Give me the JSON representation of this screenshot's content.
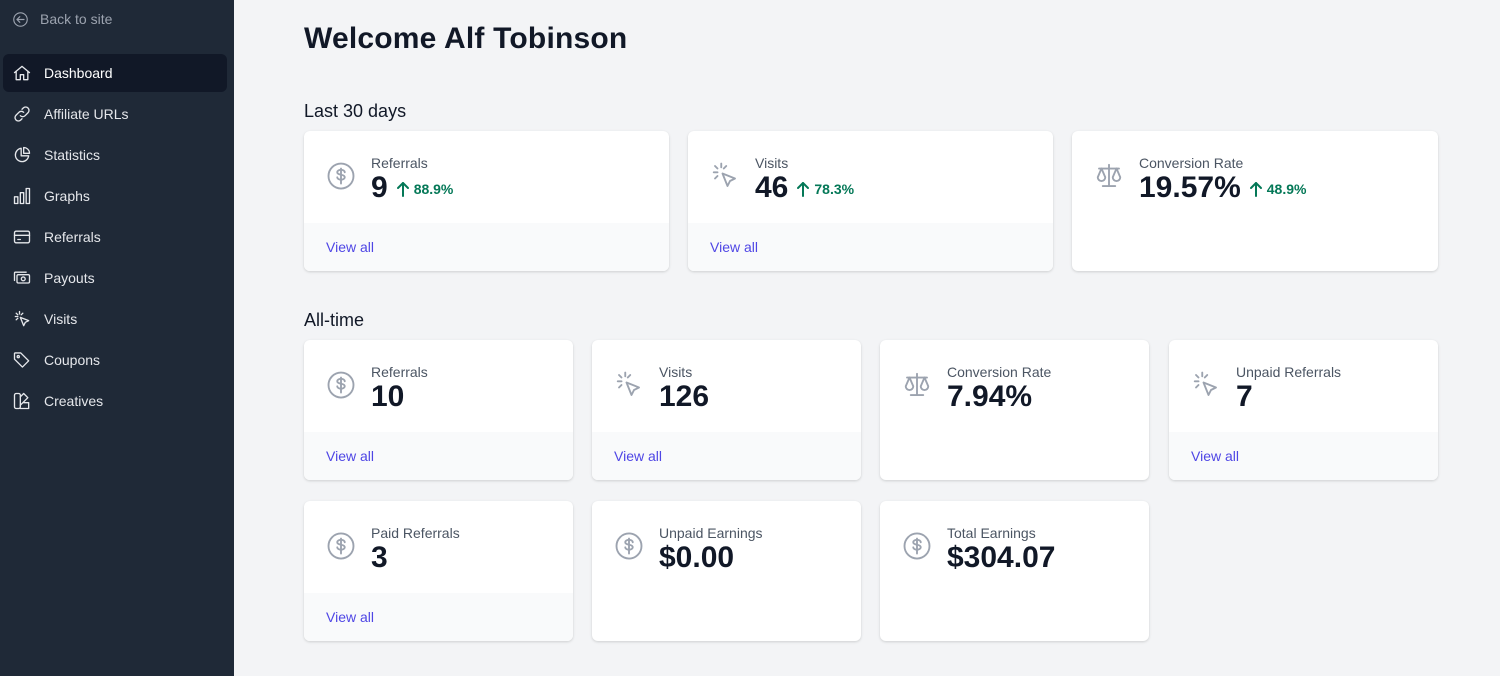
{
  "sidebar": {
    "back_label": "Back to site",
    "items": [
      {
        "label": "Dashboard",
        "icon": "home-icon"
      },
      {
        "label": "Affiliate URLs",
        "icon": "link-icon"
      },
      {
        "label": "Statistics",
        "icon": "pie-chart-icon"
      },
      {
        "label": "Graphs",
        "icon": "bar-chart-icon"
      },
      {
        "label": "Referrals",
        "icon": "card-icon"
      },
      {
        "label": "Payouts",
        "icon": "cash-icon"
      },
      {
        "label": "Visits",
        "icon": "cursor-click-icon"
      },
      {
        "label": "Coupons",
        "icon": "tag-icon"
      },
      {
        "label": "Creatives",
        "icon": "swatch-icon"
      }
    ]
  },
  "header": {
    "title": "Welcome Alf Tobinson"
  },
  "last30": {
    "label": "Last 30 days",
    "cards": [
      {
        "label": "Referrals",
        "value": "9",
        "change": "88.9%",
        "link": "View all",
        "icon": "dollar-circle-icon"
      },
      {
        "label": "Visits",
        "value": "46",
        "change": "78.3%",
        "link": "View all",
        "icon": "cursor-click-icon"
      },
      {
        "label": "Conversion Rate",
        "value": "19.57%",
        "change": "48.9%",
        "icon": "scale-icon"
      }
    ]
  },
  "alltime": {
    "label": "All-time",
    "cards": [
      {
        "label": "Referrals",
        "value": "10",
        "link": "View all",
        "icon": "dollar-circle-icon"
      },
      {
        "label": "Visits",
        "value": "126",
        "link": "View all",
        "icon": "cursor-click-icon"
      },
      {
        "label": "Conversion Rate",
        "value": "7.94%",
        "icon": "scale-icon"
      },
      {
        "label": "Unpaid Referrals",
        "value": "7",
        "link": "View all",
        "icon": "cursor-click-icon"
      },
      {
        "label": "Paid Referrals",
        "value": "3",
        "link": "View all",
        "icon": "dollar-circle-icon"
      },
      {
        "label": "Unpaid Earnings",
        "value": "$0.00",
        "icon": "dollar-circle-icon"
      },
      {
        "label": "Total Earnings",
        "value": "$304.07",
        "icon": "dollar-circle-icon"
      }
    ]
  },
  "colors": {
    "sidebar_bg": "#1f2937",
    "active_item_bg": "#111827",
    "page_bg": "#f3f4f6",
    "link": "#4f46e5",
    "positive_change": "#047857"
  }
}
